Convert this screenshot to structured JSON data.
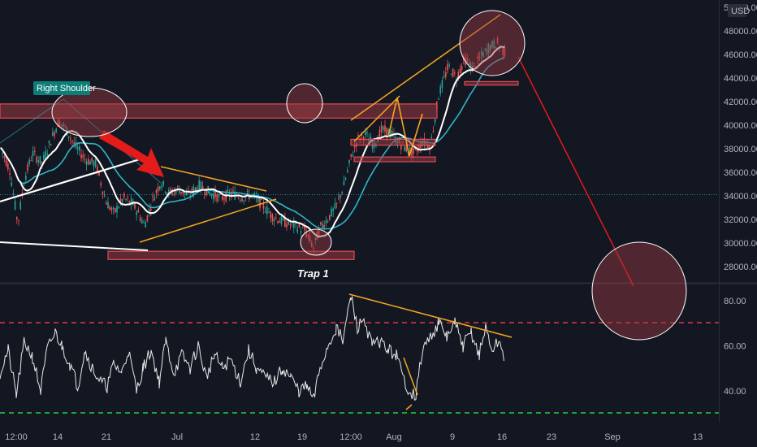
{
  "chart_data": [
    {
      "type": "candlestick",
      "title": "",
      "currency": "USD",
      "y_axis_ticks": [
        "50000.00",
        "48000.00",
        "46000.00",
        "44000.00",
        "42000.00",
        "40000.00",
        "38000.00",
        "36000.00",
        "34000.00",
        "32000.00",
        "30000.00",
        "28000.00"
      ],
      "ylim": [
        27000,
        50500
      ],
      "x_axis_ticks": [
        "12:00",
        "14",
        "21",
        "Jul",
        "12",
        "19",
        "12:00",
        "Aug",
        "9",
        "16",
        "23",
        "Sep",
        "13"
      ],
      "last_price_line": 34100,
      "series": [
        {
          "name": "",
          "x": [
            "14",
            "21",
            "Jul",
            "12",
            "19",
            "Aug",
            "9",
            "16"
          ],
          "values": [
            41500,
            36500,
            34500,
            33500,
            31200,
            38500,
            44000,
            46000
          ]
        }
      ],
      "annotations": [
        {
          "text": "Right Shoulder",
          "kind": "label"
        },
        {
          "text": "Trap 1",
          "kind": "label"
        }
      ],
      "zones": [
        {
          "from": 40600,
          "to": 41800
        },
        {
          "from": 28600,
          "to": 29300
        },
        {
          "from": 38300,
          "to": 38800
        },
        {
          "from": 36900,
          "to": 37300
        },
        {
          "from": 43400,
          "to": 43700
        }
      ]
    },
    {
      "type": "line",
      "title": "",
      "y_axis_ticks": [
        "80.00",
        "60.00",
        "40.00"
      ],
      "ylim": [
        30,
        85
      ],
      "reference_lines": [
        70,
        30
      ],
      "series": [
        {
          "name": "",
          "x": [
            "14",
            "21",
            "Jul",
            "12",
            "19",
            "Aug",
            "9",
            "16"
          ],
          "values": [
            62,
            40,
            58,
            50,
            34,
            72,
            66,
            55
          ]
        }
      ]
    }
  ],
  "colors": {
    "background": "#131722",
    "candle_up": "#26a69a",
    "candle_down": "#ef5350",
    "ma_fast": "#ffffff",
    "ma_slow": "#2fb4c8",
    "trendline": "#f5a623",
    "zone_fill": "#9b3a42",
    "arrow": "#e31b1b",
    "rsi_upper": "#e33a3a",
    "rsi_lower": "#25d03a"
  }
}
